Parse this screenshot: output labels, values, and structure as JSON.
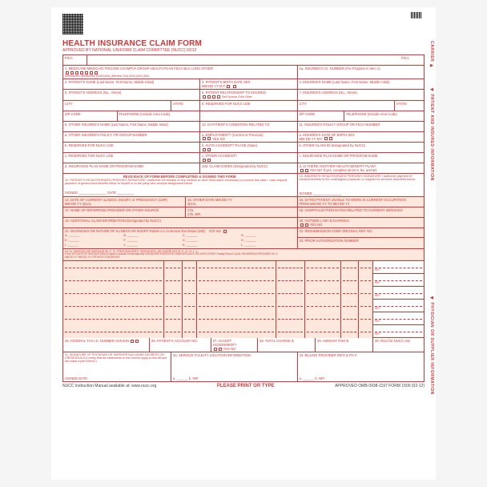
{
  "title": "HEALTH INSURANCE CLAIM FORM",
  "subtitle": "APPROVED BY NATIONAL UNIFORM CLAIM COMMITTEE (NUCC) 02/12",
  "pica_l": "PICA",
  "pica_r": "PICA",
  "carrier": "CARRIER ▶",
  "side_top": "◀ PATIENT AND INSURED INFORMATION",
  "side_bot": "◀ PHYSICIAN OR SUPPLIER INFORMATION",
  "top": {
    "f1": "1.  MEDICARE   MEDICAID   TRICARE   CHAMPVA   GROUP HEALTH PLAN   FECA BLK LUNG   OTHER",
    "f1sub": "(Medicare#)   (Medicaid#)   (ID#/DoD#)   (Member ID#)   (ID#)   (ID#)   (ID#)",
    "f1a": "1a. INSURED'S I.D. NUMBER   (For Program in Item 1)",
    "f2": "2. PATIENT'S NAME (Last Name, First Name, Middle Initial)",
    "f3": "3. PATIENT'S BIRTH DATE   SEX",
    "f3sub": "MM  DD  YY     M    F",
    "f4": "4. INSURED'S NAME (Last Name, First Name, Middle Initial)",
    "f5": "5. PATIENT'S ADDRESS (No., Street)",
    "f6": "6. PATIENT RELATIONSHIP TO INSURED",
    "f6sub": "Self   Spouse   Child   Other",
    "f7": "7. INSURED'S ADDRESS (No., Street)",
    "city": "CITY",
    "state": "STATE",
    "f8": "8. RESERVED FOR NUCC USE",
    "zip": "ZIP CODE",
    "tel": "TELEPHONE (Include Area Code)",
    "f9": "9. OTHER INSURED'S NAME (Last Name, First Name, Middle Initial)",
    "f10": "10. IS PATIENT'S CONDITION RELATED TO:",
    "f11": "11. INSURED'S POLICY GROUP OR FECA NUMBER",
    "f9a": "a. OTHER INSURED'S POLICY OR GROUP NUMBER",
    "f10a": "a. EMPLOYMENT? (Current or Previous)",
    "f10a2": "YES     NO",
    "f11a": "a. INSURED'S DATE OF BIRTH   SEX",
    "f11a2": "MM  DD  YY     M     F",
    "f9b": "b. RESERVED FOR NUCC USE",
    "f10b": "b. AUTO ACCIDENT?   PLACE (State)",
    "f11b": "b. OTHER CLAIM ID (Designated by NUCC)",
    "f9c": "c. RESERVED FOR NUCC USE",
    "f10c": "c. OTHER ACCIDENT?",
    "f11c": "c. INSURANCE PLAN NAME OR PROGRAM NAME",
    "f9d": "d. INSURANCE PLAN NAME OR PROGRAM NAME",
    "f10d": "10d. CLAIM CODES (Designated by NUCC)",
    "f11d": "d. IS THERE ANOTHER HEALTH BENEFIT PLAN?",
    "f11d2": "YES   NO   If yes, complete items 9, 9a, and 9d.",
    "readback": "READ BACK OF FORM BEFORE COMPLETING & SIGNING THIS FORM.",
    "f12": "12. PATIENT'S OR AUTHORIZED PERSON'S SIGNATURE  I authorize the release of any medical or other information necessary to process this claim. I also request payment of government benefits either to myself or to the party who accepts assignment below.",
    "f13": "13. INSURED'S OR AUTHORIZED PERSON'S SIGNATURE I authorize payment of medical benefits to the undersigned physician or supplier for services described below.",
    "signed": "SIGNED",
    "date": "DATE"
  },
  "mid": {
    "f14": "14. DATE OF CURRENT ILLNESS, INJURY, or PREGNANCY (LMP)",
    "f14sub": "MM  DD  YY   QUAL",
    "f15": "15. OTHER DATE   MM  DD  YY",
    "f15sub": "QUAL",
    "f16": "16. DATES PATIENT UNABLE TO WORK IN CURRENT OCCUPATION",
    "f16sub": "FROM  MM DD YY   TO  MM DD YY",
    "f17": "17. NAME OF REFERRING PROVIDER OR OTHER SOURCE",
    "f17a": "17a.",
    "f17b": "17b. NPI",
    "f18": "18. HOSPITALIZATION DATES RELATED TO CURRENT SERVICES",
    "f19": "19. ADDITIONAL CLAIM INFORMATION (Designated by NUCC)",
    "f20": "20. OUTSIDE LAB?   $ CHARGES",
    "f20sub": "YES   NO",
    "f21": "21. DIAGNOSIS OR NATURE OF ILLNESS OR INJURY  Relate A-L to service line below (24E)",
    "f21icd": "ICD Ind.",
    "diag": [
      "A.",
      "B.",
      "C.",
      "D.",
      "E.",
      "F.",
      "G.",
      "H.",
      "I.",
      "J.",
      "K.",
      "L."
    ],
    "f22": "22. RESUBMISSION CODE   ORIGINAL REF. NO.",
    "f23": "23. PRIOR AUTHORIZATION NUMBER"
  },
  "serv": {
    "head": "24. A.  DATE(S) OF SERVICE   B.  C.  D. PROCEDURES, SERVICES, OR SUPPLIES   E.   F.   G.  H.  I.  J.",
    "head2": "From   To   PLACE OF SERVICE   EMG   (Explain Unusual Circumstances)   DIAGNOSIS POINTER   $ CHARGES   DAYS OR UNITS   EPSDT Family Plan   ID QUAL   RENDERING PROVIDER ID. #",
    "sub": "MM DD YY  MM DD YY    CPT/HCPCS   MODIFIER",
    "npi": "NPI",
    "rows": [
      1,
      2,
      3,
      4,
      5,
      6
    ]
  },
  "bottom": {
    "f25": "25. FEDERAL TAX I.D. NUMBER   SSN  EIN",
    "f26": "26. PATIENT'S ACCOUNT NO.",
    "f27": "27. ACCEPT ASSIGNMENT?",
    "f27sub": "YES   NO",
    "f28": "28. TOTAL CHARGE   $",
    "f29": "29. AMOUNT PAID   $",
    "f30": "30. Rsvd for NUCC Use",
    "f31": "31. SIGNATURE OF PHYSICIAN OR SUPPLIER INCLUDING DEGREES OR CREDENTIALS (I certify that the statements on the reverse apply to this bill and are made a part thereof.)",
    "f32": "32. SERVICE FACILITY LOCATION INFORMATION",
    "f33": "33. BILLING PROVIDER INFO & PH #",
    "signed": "SIGNED   DATE",
    "a": "a.",
    "b": "b.  NPI"
  },
  "footer": {
    "l": "NUCC Instruction Manual available at: www.nucc.org",
    "m": "PLEASE PRINT OR TYPE",
    "r": "APPROVED OMB-0938-1197 FORM 1500 (02-12)"
  }
}
